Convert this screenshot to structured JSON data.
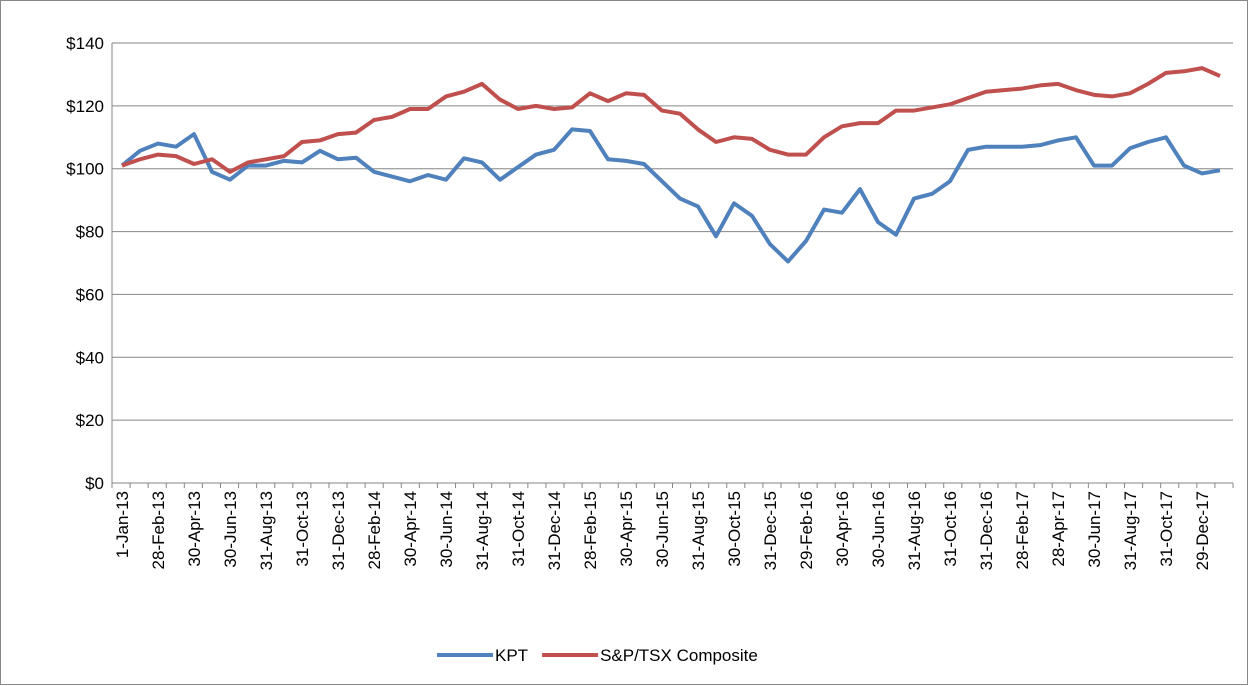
{
  "chart_data": {
    "type": "line",
    "categories": [
      "1-Jan-13",
      null,
      "28-Feb-13",
      null,
      "30-Apr-13",
      null,
      "30-Jun-13",
      null,
      "31-Aug-13",
      null,
      "31-Oct-13",
      null,
      "31-Dec-13",
      null,
      "28-Feb-14",
      null,
      "30-Apr-14",
      null,
      "30-Jun-14",
      null,
      "31-Aug-14",
      null,
      "31-Oct-14",
      null,
      "31-Dec-14",
      null,
      "28-Feb-15",
      null,
      "30-Apr-15",
      null,
      "30-Jun-15",
      null,
      "31-Aug-15",
      null,
      "30-Oct-15",
      null,
      "31-Dec-15",
      null,
      "29-Feb-16",
      null,
      "30-Apr-16",
      null,
      "30-Jun-16",
      null,
      "31-Aug-16",
      null,
      "31-Oct-16",
      null,
      "31-Dec-16",
      null,
      "28-Feb-17",
      null,
      "28-Apr-17",
      null,
      "30-Jun-17",
      null,
      "31-Aug-17",
      null,
      "31-Oct-17",
      null,
      "29-Dec-17",
      null
    ],
    "series": [
      {
        "name": "KPT",
        "color": "#4f81bd",
        "values": [
          101,
          105.7,
          108,
          107,
          111,
          99,
          96.5,
          101,
          101,
          102.5,
          102,
          105.7,
          103,
          103.5,
          99,
          97.5,
          96,
          98,
          96.5,
          103.3,
          102,
          96.5,
          100.5,
          104.5,
          106,
          112.5,
          112,
          103,
          102.5,
          101.5,
          96,
          90.5,
          88,
          78.5,
          89,
          85,
          76,
          70.5,
          77,
          87,
          86,
          93.5,
          83,
          79,
          90.5,
          92,
          96,
          106,
          107,
          107,
          107,
          107.5,
          109,
          110,
          101,
          101,
          106.5,
          108.5,
          110,
          101,
          98.5,
          99.5
        ]
      },
      {
        "name": "S&P/TSX Composite",
        "color": "#c0504d",
        "values": [
          101,
          103,
          104.5,
          104,
          101.5,
          103,
          99,
          102,
          103,
          104,
          108.5,
          109,
          111,
          111.5,
          115.5,
          116.5,
          119,
          119,
          123,
          124.5,
          127,
          122,
          119,
          120,
          119,
          119.5,
          124,
          121.5,
          124,
          123.5,
          118.5,
          117.5,
          112.5,
          108.5,
          110,
          109.5,
          106,
          104.5,
          104.5,
          110,
          113.5,
          114.5,
          114.5,
          118.5,
          118.5,
          119.5,
          120.5,
          122.5,
          124.5,
          125,
          125.5,
          126.5,
          127,
          125,
          123.5,
          123,
          124,
          127,
          130.5,
          131,
          132,
          129.5
        ]
      }
    ],
    "ylim": [
      0,
      140
    ],
    "yticks": [
      {
        "value": 0,
        "label": "$0"
      },
      {
        "value": 20,
        "label": "$20"
      },
      {
        "value": 40,
        "label": "$40"
      },
      {
        "value": 60,
        "label": "$60"
      },
      {
        "value": 80,
        "label": "$80"
      },
      {
        "value": 100,
        "label": "$100"
      },
      {
        "value": 120,
        "label": "$120"
      },
      {
        "value": 140,
        "label": "$140"
      }
    ],
    "grid": true,
    "legend": "bottom"
  }
}
